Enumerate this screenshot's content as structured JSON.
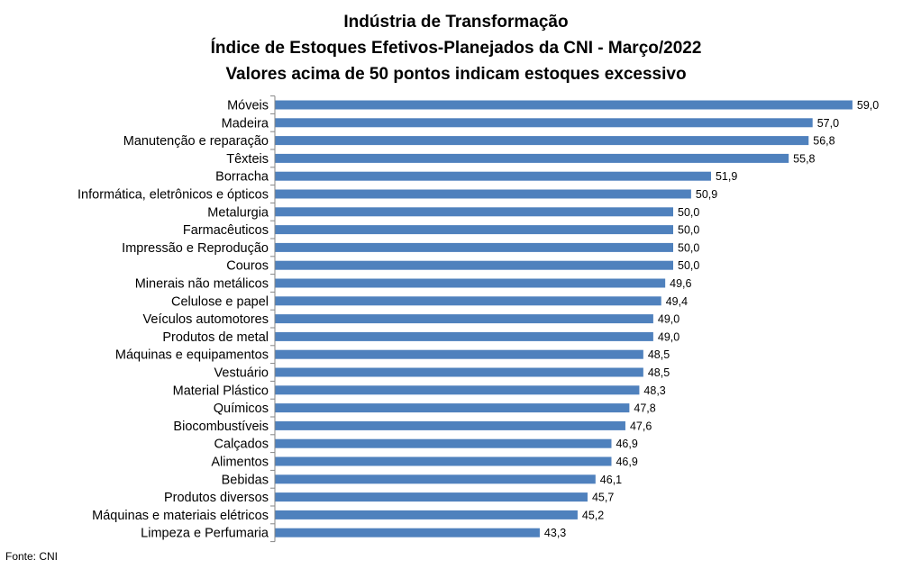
{
  "chart_data": {
    "type": "bar",
    "orientation": "horizontal",
    "title_lines": [
      "Indústria de Transformação",
      "Índice de Estoques Efetivos-Planejados da CNI - Março/2022",
      "Valores acima de 50 pontos indicam estoques excessivo"
    ],
    "categories": [
      "Móveis",
      "Madeira",
      "Manutenção e reparação",
      "Têxteis",
      "Borracha",
      "Informática, eletrônicos e ópticos",
      "Metalurgia",
      "Farmacêuticos",
      "Impressão e Reprodução",
      "Couros",
      "Minerais não metálicos",
      "Celulose e papel",
      "Veículos automotores",
      "Produtos de metal",
      "Máquinas e equipamentos",
      "Vestuário",
      "Material Plástico",
      "Químicos",
      "Biocombustíveis",
      "Calçados",
      "Alimentos",
      "Bebidas",
      "Produtos diversos",
      "Máquinas e materiais elétricos",
      "Limpeza e Perfumaria"
    ],
    "values": [
      59.0,
      57.0,
      56.8,
      55.8,
      51.9,
      50.9,
      50.0,
      50.0,
      50.0,
      50.0,
      49.6,
      49.4,
      49.0,
      49.0,
      48.5,
      48.5,
      48.3,
      47.8,
      47.6,
      46.9,
      46.9,
      46.1,
      45.7,
      45.2,
      43.3
    ],
    "value_labels": [
      "59,0",
      "57,0",
      "56,8",
      "55,8",
      "51,9",
      "50,9",
      "50,0",
      "50,0",
      "50,0",
      "50,0",
      "49,6",
      "49,4",
      "49,0",
      "49,0",
      "48,5",
      "48,5",
      "48,3",
      "47,8",
      "47,6",
      "46,9",
      "46,9",
      "46,1",
      "45,7",
      "45,2",
      "43,3"
    ],
    "xlim": [
      30,
      59
    ],
    "bar_color": "#4f81bd",
    "axis_color": "#868686",
    "grid": false,
    "legend": "none",
    "data_labels": true
  },
  "source": "Fonte: CNI"
}
